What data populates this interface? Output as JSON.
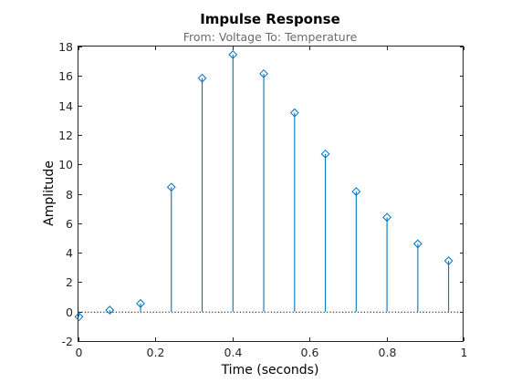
{
  "chart_data": {
    "type": "stem",
    "title": "Impulse Response",
    "subtitle": "From: Voltage  To: Temperature",
    "xlabel": "Time (seconds)",
    "ylabel": "Amplitude",
    "xlim": [
      0,
      1
    ],
    "ylim": [
      -2,
      18
    ],
    "xticks": [
      0,
      0.2,
      0.4,
      0.6,
      0.8,
      1
    ],
    "xtick_labels": [
      "0",
      "0.2",
      "0.4",
      "0.6",
      "0.8",
      "1"
    ],
    "yticks": [
      -2,
      0,
      2,
      4,
      6,
      8,
      10,
      12,
      14,
      16,
      18
    ],
    "ytick_labels": [
      "-2",
      "0",
      "2",
      "4",
      "6",
      "8",
      "10",
      "12",
      "14",
      "16",
      "18"
    ],
    "grid": false,
    "box": true,
    "series": [
      {
        "x": [
          0,
          0.08,
          0.16,
          0.24,
          0.32,
          0.4,
          0.48,
          0.56,
          0.64,
          0.72,
          0.8,
          0.88,
          0.96
        ],
        "y": [
          -0.35,
          0.1,
          0.55,
          8.45,
          15.85,
          17.45,
          16.15,
          13.5,
          10.7,
          8.15,
          6.4,
          4.6,
          3.45
        ],
        "color": "#0072bd",
        "marker": "diamond"
      }
    ],
    "reference_line": {
      "y": 0,
      "style": "dotted",
      "color": "#000000"
    }
  }
}
